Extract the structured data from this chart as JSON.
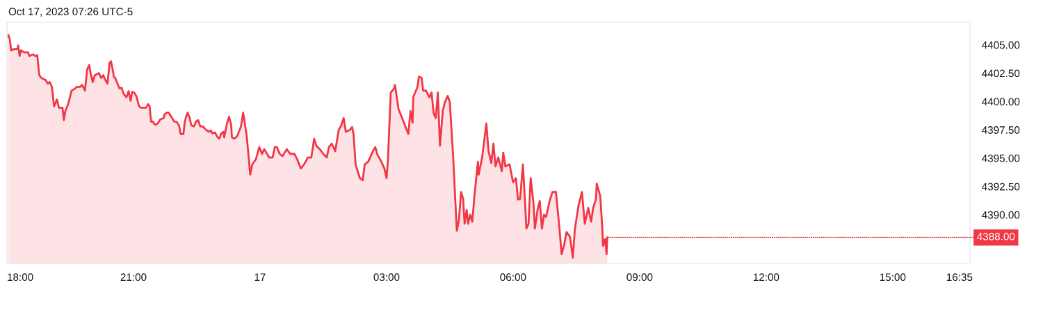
{
  "chart_data": {
    "type": "area",
    "title": "Oct 17, 2023 07:26 UTC-5",
    "xlim": [
      "2023-10-16T18:00",
      "2023-10-17T16:50"
    ],
    "ylim": [
      4385.7,
      4407.0
    ],
    "xticks": [
      {
        "value": "2023-10-16T18:00",
        "label": "18:00"
      },
      {
        "value": "2023-10-16T21:00",
        "label": "21:00"
      },
      {
        "value": "2023-10-17T00:00",
        "label": "17"
      },
      {
        "value": "2023-10-17T03:00",
        "label": "03:00"
      },
      {
        "value": "2023-10-17T06:00",
        "label": "06:00"
      },
      {
        "value": "2023-10-17T09:00",
        "label": "09:00"
      },
      {
        "value": "2023-10-17T12:00",
        "label": "12:00"
      },
      {
        "value": "2023-10-17T15:00",
        "label": "15:00"
      },
      {
        "value": "2023-10-17T16:35",
        "label": "16:35"
      }
    ],
    "yticks": [
      {
        "value": 4390,
        "label": "4390.00"
      },
      {
        "value": 4392.5,
        "label": "4392.50"
      },
      {
        "value": 4395,
        "label": "4395.00"
      },
      {
        "value": 4397.5,
        "label": "4397.50"
      },
      {
        "value": 4400,
        "label": "4400.00"
      },
      {
        "value": 4402.5,
        "label": "4402.50"
      },
      {
        "value": 4405,
        "label": "4405.00"
      }
    ],
    "grid": false,
    "annotations": [
      {
        "text": "4388.00",
        "x": "2023-10-17T08:14",
        "y": 4388.0
      }
    ],
    "series": [
      {
        "color": "#f23645",
        "x": [
          "2023-10-16T18:02",
          "2023-10-16T18:04",
          "2023-10-16T18:06",
          "2023-10-16T18:10",
          "2023-10-16T18:15",
          "2023-10-16T18:16",
          "2023-10-16T18:18",
          "2023-10-16T18:20",
          "2023-10-16T18:25",
          "2023-10-16T18:30",
          "2023-10-16T18:32",
          "2023-10-16T18:37",
          "2023-10-16T18:40",
          "2023-10-16T18:43",
          "2023-10-16T18:44",
          "2023-10-16T18:46",
          "2023-10-16T18:49",
          "2023-10-16T18:55",
          "2023-10-16T18:58",
          "2023-10-16T19:01",
          "2023-10-16T19:04",
          "2023-10-16T19:07",
          "2023-10-16T19:11",
          "2023-10-16T19:14",
          "2023-10-16T19:19",
          "2023-10-16T19:21",
          "2023-10-16T19:23",
          "2023-10-16T19:27",
          "2023-10-16T19:29",
          "2023-10-16T19:32",
          "2023-10-16T19:36",
          "2023-10-16T19:39",
          "2023-10-16T19:44",
          "2023-10-16T19:47",
          "2023-10-16T19:51",
          "2023-10-16T19:54",
          "2023-10-16T19:57",
          "2023-10-16T19:59",
          "2023-10-16T20:02",
          "2023-10-16T20:05",
          "2023-10-16T20:11",
          "2023-10-16T20:14",
          "2023-10-16T20:17",
          "2023-10-16T20:20",
          "2023-10-16T20:23",
          "2023-10-16T20:26",
          "2023-10-16T20:28",
          "2023-10-16T20:31",
          "2023-10-16T20:32",
          "2023-10-16T20:34",
          "2023-10-16T20:36",
          "2023-10-16T20:40",
          "2023-10-16T20:43",
          "2023-10-16T20:46",
          "2023-10-16T20:50",
          "2023-10-16T20:53",
          "2023-10-16T20:56",
          "2023-10-16T20:58",
          "2023-10-16T21:01",
          "2023-10-16T21:04",
          "2023-10-16T21:08",
          "2023-10-16T21:11",
          "2023-10-16T21:14",
          "2023-10-16T21:18",
          "2023-10-16T21:21",
          "2023-10-16T21:23",
          "2023-10-16T21:25",
          "2023-10-16T21:28",
          "2023-10-16T21:29",
          "2023-10-16T21:32",
          "2023-10-16T21:35",
          "2023-10-16T21:38",
          "2023-10-16T21:43",
          "2023-10-16T21:44",
          "2023-10-16T21:47",
          "2023-10-16T21:50",
          "2023-10-16T21:53",
          "2023-10-16T21:58",
          "2023-10-16T22:01",
          "2023-10-16T22:05",
          "2023-10-16T22:07",
          "2023-10-16T22:11",
          "2023-10-16T22:13",
          "2023-10-16T22:15",
          "2023-10-16T22:17",
          "2023-10-16T22:20",
          "2023-10-16T22:22",
          "2023-10-16T22:26",
          "2023-10-16T22:29",
          "2023-10-16T22:32",
          "2023-10-16T22:35",
          "2023-10-16T22:39",
          "2023-10-16T22:42",
          "2023-10-16T22:47",
          "2023-10-16T22:50",
          "2023-10-16T22:52",
          "2023-10-16T22:56",
          "2023-10-16T22:59",
          "2023-10-16T23:02",
          "2023-10-16T23:05",
          "2023-10-16T23:08",
          "2023-10-16T23:09",
          "2023-10-16T23:13",
          "2023-10-16T23:16",
          "2023-10-16T23:19",
          "2023-10-16T23:20",
          "2023-10-16T23:23",
          "2023-10-16T23:26",
          "2023-10-16T23:28",
          "2023-10-16T23:33",
          "2023-10-16T23:36",
          "2023-10-16T23:41",
          "2023-10-16T23:43",
          "2023-10-16T23:46",
          "2023-10-16T23:49",
          "2023-10-16T23:54",
          "2023-10-16T23:59",
          "2023-10-17T00:03",
          "2023-10-17T00:06",
          "2023-10-17T00:13",
          "2023-10-17T00:18",
          "2023-10-17T00:21",
          "2023-10-17T00:24",
          "2023-10-17T00:28",
          "2023-10-17T00:32",
          "2023-10-17T00:38",
          "2023-10-17T00:43",
          "2023-10-17T00:49",
          "2023-10-17T00:53",
          "2023-10-17T00:58",
          "2023-10-17T01:02",
          "2023-10-17T01:05",
          "2023-10-17T01:08",
          "2023-10-17T01:13",
          "2023-10-17T01:17",
          "2023-10-17T01:20",
          "2023-10-17T01:25",
          "2023-10-17T01:30",
          "2023-10-17T01:35",
          "2023-10-17T01:38",
          "2023-10-17T01:42",
          "2023-10-17T01:47",
          "2023-10-17T01:52",
          "2023-10-17T01:55",
          "2023-10-17T01:59",
          "2023-10-17T02:02",
          "2023-10-17T02:08",
          "2023-10-17T02:11",
          "2023-10-17T02:13",
          "2023-10-17T02:16",
          "2023-10-17T02:19",
          "2023-10-17T02:22",
          "2023-10-17T02:26",
          "2023-10-17T02:29",
          "2023-10-17T02:34",
          "2023-10-17T02:41",
          "2023-10-17T02:44",
          "2023-10-17T02:47",
          "2023-10-17T02:52",
          "2023-10-17T02:57",
          "2023-10-17T03:00",
          "2023-10-17T03:02",
          "2023-10-17T03:06",
          "2023-10-17T03:11",
          "2023-10-17T03:12",
          "2023-10-17T03:17",
          "2023-10-17T03:21",
          "2023-10-17T03:26",
          "2023-10-17T03:31",
          "2023-10-17T03:34",
          "2023-10-17T03:37",
          "2023-10-17T03:38",
          "2023-10-17T03:44",
          "2023-10-17T03:46",
          "2023-10-17T03:50",
          "2023-10-17T03:52",
          "2023-10-17T03:56",
          "2023-10-17T04:01",
          "2023-10-17T04:04",
          "2023-10-17T04:07",
          "2023-10-17T04:10",
          "2023-10-17T04:13",
          "2023-10-17T04:16",
          "2023-10-17T04:20",
          "2023-10-17T04:23",
          "2023-10-17T04:27",
          "2023-10-17T04:30",
          "2023-10-17T04:35",
          "2023-10-17T04:38",
          "2023-10-17T04:40",
          "2023-10-17T04:43",
          "2023-10-17T04:46",
          "2023-10-17T04:49",
          "2023-10-17T04:51",
          "2023-10-17T04:54",
          "2023-10-17T04:56",
          "2023-10-17T04:59",
          "2023-10-17T05:02",
          "2023-10-17T05:05",
          "2023-10-17T05:10",
          "2023-10-17T05:11",
          "2023-10-17T05:16",
          "2023-10-17T05:22",
          "2023-10-17T05:25",
          "2023-10-17T05:29",
          "2023-10-17T05:32",
          "2023-10-17T05:35",
          "2023-10-17T05:39",
          "2023-10-17T05:44",
          "2023-10-17T05:46",
          "2023-10-17T05:49",
          "2023-10-17T05:55",
          "2023-10-17T06:00",
          "2023-10-17T06:04",
          "2023-10-17T06:07",
          "2023-10-17T06:10",
          "2023-10-17T06:14",
          "2023-10-17T06:19",
          "2023-10-17T06:22",
          "2023-10-17T06:25",
          "2023-10-17T06:29",
          "2023-10-17T06:31",
          "2023-10-17T06:35",
          "2023-10-17T06:38",
          "2023-10-17T06:41",
          "2023-10-17T06:44",
          "2023-10-17T06:47",
          "2023-10-17T06:52",
          "2023-10-17T06:56",
          "2023-10-17T07:01",
          "2023-10-17T07:06",
          "2023-10-17T07:09",
          "2023-10-17T07:13",
          "2023-10-17T07:16",
          "2023-10-17T07:21",
          "2023-10-17T07:25",
          "2023-10-17T07:28",
          "2023-10-17T07:33",
          "2023-10-17T07:38",
          "2023-10-17T07:42",
          "2023-10-17T07:47",
          "2023-10-17T07:51",
          "2023-10-17T07:54",
          "2023-10-17T07:58",
          "2023-10-17T07:59",
          "2023-10-17T08:04",
          "2023-10-17T08:07",
          "2023-10-17T08:08",
          "2023-10-17T08:11",
          "2023-10-17T08:13",
          "2023-10-17T08:14"
        ],
        "values": [
          4405.85,
          4405.49,
          4404.51,
          4404.63,
          4404.63,
          4404.94,
          4404.02,
          4404.51,
          4404.33,
          4404.33,
          4404.02,
          4404.15,
          4404.02,
          4404.09,
          4403.54,
          4402.32,
          4402.07,
          4401.89,
          4401.58,
          4401.71,
          4401.28,
          4399.57,
          4400.18,
          4399.45,
          4399.45,
          4398.35,
          4399.15,
          4399.76,
          4400.24,
          4400.97,
          4401.1,
          4401.28,
          4401.28,
          4401.46,
          4400.97,
          4402.8,
          4403.23,
          4402.5,
          4401.71,
          4402.32,
          4402.5,
          4402.07,
          4402.32,
          4401.89,
          4401.58,
          4403.41,
          4403.54,
          4402.62,
          4402.19,
          4402.07,
          4401.77,
          4401.16,
          4401.22,
          4400.67,
          4400.37,
          4400.92,
          4400.06,
          4400.85,
          4400.79,
          4400.49,
          4399.57,
          4399.45,
          4399.45,
          4399.45,
          4399.76,
          4399.57,
          4398.23,
          4398.23,
          4398.05,
          4397.93,
          4398.11,
          4398.41,
          4398.54,
          4398.84,
          4399.02,
          4399.02,
          4398.72,
          4398.23,
          4398.23,
          4397.87,
          4397.13,
          4397.13,
          4398.23,
          4398.66,
          4399.02,
          4398.54,
          4397.93,
          4397.8,
          4398.23,
          4398.35,
          4397.8,
          4397.8,
          4397.56,
          4397.32,
          4397.44,
          4397.19,
          4397.26,
          4396.89,
          4396.71,
          4397.19,
          4397.32,
          4396.83,
          4398.05,
          4398.66,
          4397.93,
          4396.83,
          4396.71,
          4396.83,
          4397.01,
          4397.8,
          4399.02,
          4397.01,
          4395.67,
          4393.54,
          4394.45,
          4394.88,
          4395.97,
          4395.37,
          4395.79,
          4395.06,
          4395.06,
          4395.97,
          4395.97,
          4395.37,
          4395.18,
          4395.79,
          4395.37,
          4395.37,
          4394.88,
          4394.08,
          4394.39,
          4394.69,
          4395.06,
          4395.06,
          4396.71,
          4396.1,
          4395.79,
          4395.37,
          4395.06,
          4395.97,
          4396.28,
          4395.61,
          4397.5,
          4397.8,
          4398.54,
          4397.32,
          4397.5,
          4397.74,
          4397.13,
          4394.45,
          4393.84,
          4393.23,
          4393.05,
          4394.45,
          4394.69,
          4395.67,
          4395.97,
          4395.3,
          4394.76,
          4394.08,
          4393.23,
          4394.88,
          4400.79,
          4401.16,
          4401.46,
          4399.33,
          4398.72,
          4397.93,
          4397.13,
          4399.15,
          4398.11,
          4400.37,
          4401.28,
          4402.19,
          4402.07,
          4400.97,
          4400.97,
          4400.37,
          4400.79,
          4398.96,
          4398.54,
          4400.79,
          4396.1,
          4399.15,
          4399.94,
          4400.49,
          4399.94,
          4394.88,
          4391.04,
          4388.6,
          4389.57,
          4392.01,
          4391.4,
          4389.21,
          4390.43,
          4389.21,
          4390.0,
          4389.39,
          4391.64,
          4394.69,
          4393.54,
          4395.06,
          4398.05,
          4395.67,
          4394.57,
          4396.28,
          4394.27,
          4395.06,
          4393.84,
          4395.49,
          4394.27,
          4394.45,
          4392.86,
          4393.23,
          4391.34,
          4391.4,
          4394.45,
          4388.78,
          4389.21,
          4393.23,
          4391.04,
          4388.78,
          4390.49,
          4391.22,
          4388.78,
          4390.0,
          4389.82,
          4391.22,
          4392.01,
          4392.01,
          4388.78,
          4386.52,
          4387.44,
          4388.48,
          4388.05,
          4386.22,
          4388.78,
          4390.79,
          4392.01,
          4389.21,
          4390.61,
          4389.39,
          4390.61,
          4391.4,
          4392.74,
          4391.64,
          4388.78,
          4387.25,
          4387.87,
          4386.52,
          4388.0
        ]
      }
    ]
  }
}
